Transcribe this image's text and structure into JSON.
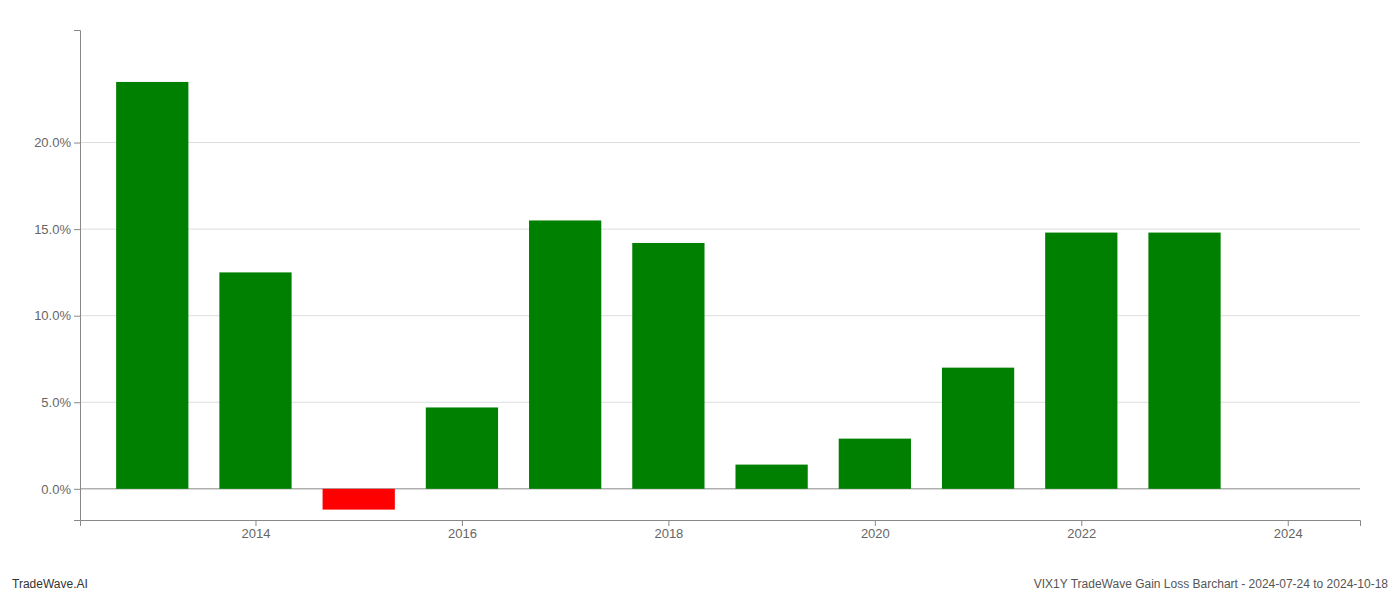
{
  "chart_data": {
    "type": "bar",
    "x": [
      2013,
      2014,
      2015,
      2016,
      2017,
      2018,
      2019,
      2020,
      2021,
      2022,
      2023
    ],
    "values": [
      0.235,
      0.125,
      -0.012,
      0.047,
      0.155,
      0.142,
      0.014,
      0.029,
      0.07,
      0.148,
      0.148
    ],
    "colors": [
      "#008000",
      "#008000",
      "#ff0000",
      "#008000",
      "#008000",
      "#008000",
      "#008000",
      "#008000",
      "#008000",
      "#008000",
      "#008000"
    ],
    "xlim": [
      2012.3,
      2024.7
    ],
    "xticks": [
      2014,
      2016,
      2018,
      2020,
      2022,
      2024
    ],
    "ylim": [
      -0.018,
      0.265
    ],
    "yticks": [
      {
        "value": 0.0,
        "label": "0.0%"
      },
      {
        "value": 0.05,
        "label": "5.0%"
      },
      {
        "value": 0.1,
        "label": "10.0%"
      },
      {
        "value": 0.15,
        "label": "15.0%"
      },
      {
        "value": 0.2,
        "label": "20.0%"
      }
    ],
    "grid": true,
    "annotations": [
      "TradeWave.AI",
      "VIX1Y TradeWave Gain Loss Barchart - 2024-07-24 to 2024-10-18"
    ]
  }
}
